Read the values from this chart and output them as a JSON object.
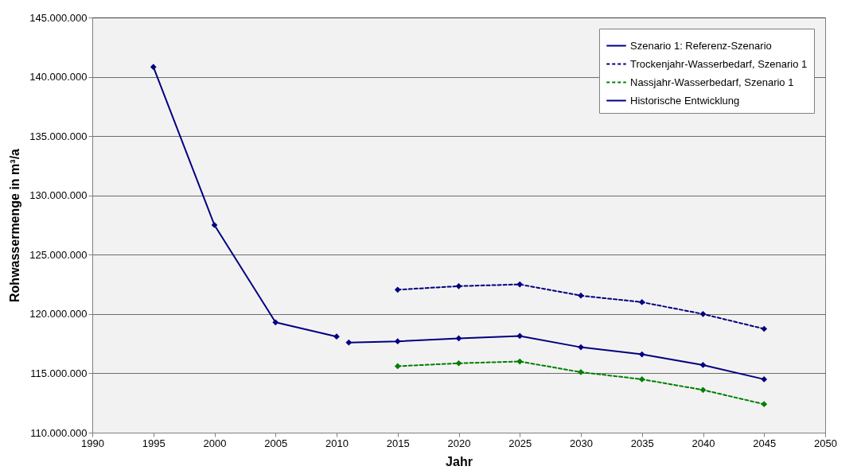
{
  "chart_data": {
    "type": "line",
    "xlabel": "Jahr",
    "ylabel": "Rohwassermenge in m³/a",
    "xlim": [
      1990,
      2050
    ],
    "xticks": [
      1990,
      1995,
      2000,
      2005,
      2010,
      2015,
      2020,
      2025,
      2030,
      2035,
      2040,
      2045,
      2050
    ],
    "ylim": [
      110000000,
      145000000
    ],
    "yticks": [
      {
        "value": 110000000,
        "label": "110.000.000"
      },
      {
        "value": 115000000,
        "label": "115.000.000"
      },
      {
        "value": 120000000,
        "label": "120.000.000"
      },
      {
        "value": 125000000,
        "label": "125.000.000"
      },
      {
        "value": 130000000,
        "label": "130.000.000"
      },
      {
        "value": 135000000,
        "label": "135.000.000"
      },
      {
        "value": 140000000,
        "label": "140.000.000"
      },
      {
        "value": 145000000,
        "label": "145.000.000"
      }
    ],
    "grid": "y",
    "legend": "top right",
    "marker": "diamond",
    "series": [
      {
        "name": "Szenario 1: Referenz-Szenario",
        "color": "#000080",
        "line_style": "solid",
        "x": [
          2011,
          2015,
          2020,
          2025,
          2030,
          2035,
          2040,
          2045
        ],
        "values": [
          117600000,
          117700000,
          117950000,
          118150000,
          117200000,
          116600000,
          115700000,
          114500000
        ]
      },
      {
        "name": "Trockenjahr-Wasserbedarf, Szenario 1",
        "color": "#000080",
        "line_style": "dashed",
        "x": [
          2015,
          2020,
          2025,
          2030,
          2035,
          2040,
          2045
        ],
        "values": [
          122050000,
          122350000,
          122500000,
          121550000,
          121000000,
          120000000,
          118750000
        ]
      },
      {
        "name": "Nassjahr-Wasserbedarf, Szenario 1",
        "color": "#008000",
        "line_style": "dashed",
        "x": [
          2015,
          2020,
          2025,
          2030,
          2035,
          2040,
          2045
        ],
        "values": [
          115600000,
          115850000,
          116000000,
          115100000,
          114500000,
          113600000,
          112400000
        ]
      },
      {
        "name": "Historische Entwicklung",
        "color": "#000080",
        "line_style": "solid",
        "x": [
          1995,
          2000,
          2005,
          2010
        ],
        "values": [
          140830000,
          127500000,
          119300000,
          118100000
        ]
      }
    ]
  }
}
